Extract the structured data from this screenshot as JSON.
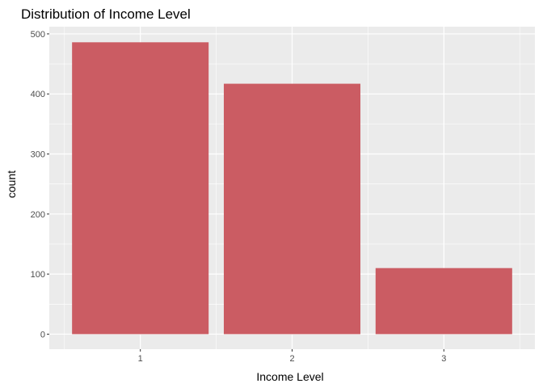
{
  "chart_data": {
    "type": "bar",
    "title": "Distribution of Income Level",
    "xlabel": "Income Level",
    "ylabel": "count",
    "categories": [
      "1",
      "2",
      "3"
    ],
    "values": [
      486,
      417,
      110
    ],
    "ylim": [
      -25,
      512
    ],
    "yticks": [
      0,
      100,
      200,
      300,
      400,
      500
    ],
    "grid": true,
    "legend": "none",
    "colors": {
      "bar": "#CB5C63",
      "panel": "#EBEBEB",
      "grid": "#FFFFFF",
      "tick_text": "#4D4D4D",
      "tick_mark": "#333333",
      "text": "#000000"
    }
  }
}
